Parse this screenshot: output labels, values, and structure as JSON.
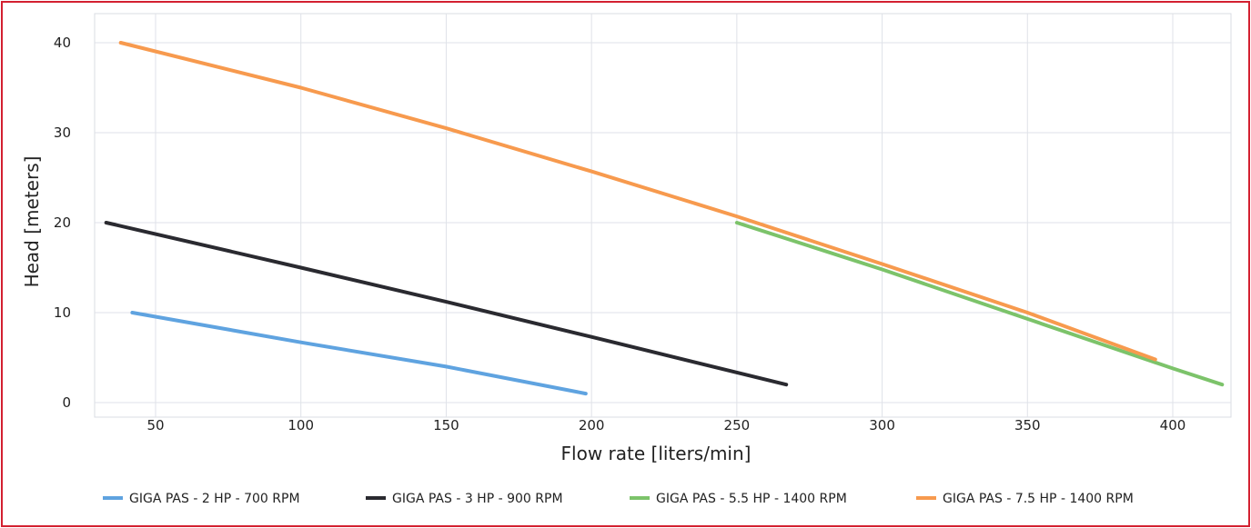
{
  "chart_data": {
    "type": "line",
    "title": "",
    "xlabel": "Flow rate [liters/min]",
    "ylabel": "Head [meters]",
    "xlim": [
      30,
      420
    ],
    "ylim": [
      0,
      40
    ],
    "x_ticks": [
      50,
      100,
      150,
      200,
      250,
      300,
      350,
      400
    ],
    "y_ticks": [
      0,
      10,
      20,
      30,
      40
    ],
    "grid": true,
    "legend_position": "bottom",
    "series": [
      {
        "name": "GIGA PAS - 2 HP - 700 RPM",
        "color": "#5fa3e0",
        "points": [
          [
            42,
            10
          ],
          [
            100,
            6.7
          ],
          [
            150,
            4.0
          ],
          [
            198,
            1.0
          ]
        ]
      },
      {
        "name": "GIGA PAS - 3 HP - 900 RPM",
        "color": "#2a2a30",
        "points": [
          [
            33,
            20
          ],
          [
            100,
            15.0
          ],
          [
            150,
            11.2
          ],
          [
            200,
            7.3
          ],
          [
            267,
            2.0
          ]
        ]
      },
      {
        "name": "GIGA PAS - 5.5 HP - 1400 RPM",
        "color": "#7cc36a",
        "points": [
          [
            250,
            20
          ],
          [
            300,
            14.8
          ],
          [
            350,
            9.3
          ],
          [
            400,
            3.8
          ],
          [
            417,
            2.0
          ]
        ]
      },
      {
        "name": "GIGA PAS - 7.5 HP - 1400 RPM",
        "color": "#f79a4e",
        "points": [
          [
            38,
            40
          ],
          [
            100,
            35.0
          ],
          [
            150,
            30.5
          ],
          [
            200,
            25.7
          ],
          [
            250,
            20.7
          ],
          [
            300,
            15.4
          ],
          [
            350,
            10.0
          ],
          [
            394,
            4.8
          ]
        ]
      }
    ]
  }
}
